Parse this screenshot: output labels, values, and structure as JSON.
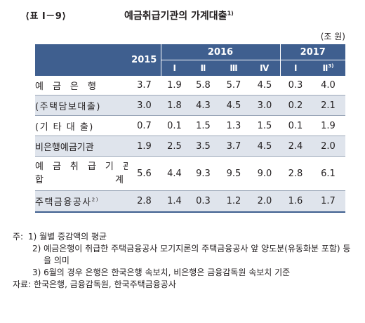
{
  "table": {
    "number": "⟨표 Ⅰ－9⟩",
    "title": "예금취급기관의 가계대출",
    "title_note": "1)",
    "unit": "(조 원)",
    "header": {
      "y2015": "2015",
      "y2016": "2016",
      "y2017": "2017",
      "quarters_2016": [
        "Ⅰ",
        "Ⅱ",
        "Ⅲ",
        "Ⅳ"
      ],
      "quarters_2017": [
        "Ⅰ",
        "Ⅱ"
      ],
      "q2_2017_note": "3)"
    },
    "rows": [
      {
        "label": "예금은행",
        "values": [
          "3.7",
          "1.9",
          "5.8",
          "5.7",
          "4.5",
          "0.3",
          "4.0"
        ]
      },
      {
        "label": "(주택담보대출)",
        "values": [
          "3.0",
          "1.8",
          "4.3",
          "4.5",
          "3.0",
          "0.2",
          "2.1"
        ]
      },
      {
        "label": "(기 타 대 출)",
        "values": [
          "0.7",
          "0.1",
          "1.5",
          "1.3",
          "1.5",
          "0.1",
          "1.9"
        ]
      },
      {
        "label": "비은행예금기관",
        "values": [
          "1.9",
          "2.5",
          "3.5",
          "3.7",
          "4.5",
          "2.4",
          "2.0"
        ]
      },
      {
        "label_line1": "예금취급기관",
        "label_line2a": "합",
        "label_line2b": "계",
        "values": [
          "5.6",
          "4.4",
          "9.3",
          "9.5",
          "9.0",
          "2.8",
          "6.1"
        ]
      },
      {
        "label": "주택금융공사",
        "label_note": "2)",
        "values": [
          "2.8",
          "1.4",
          "0.3",
          "1.2",
          "2.0",
          "1.6",
          "1.7"
        ]
      }
    ]
  },
  "notes": {
    "prefix": "주:",
    "n1": "1) 월별 증감액의 평균",
    "n2": "2) 예금은행이 취급한 주택금융공사 모기지론의 주택금융공사 앞 양도분(유동화분 포함) 등을 의미",
    "n3": "3) 6월의 경우 은행은 한국은행 속보치, 비은행은 금융감독원 속보치 기준",
    "source": "자료: 한국은행, 금융감독원, 한국주택금융공사"
  }
}
